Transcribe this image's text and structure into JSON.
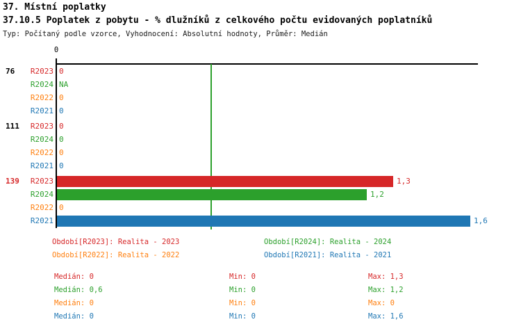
{
  "header": {
    "title1": "37. Místní poplatky",
    "title2": "37.10.5 Poplatek z pobytu - % dlužníků z celkového počtu evidovaných poplatníků",
    "meta": "Typ: Počítaný podle vzorce, Vyhodnocení: Absolutní hodnoty, Průměr: Medián"
  },
  "colors": {
    "r2023": "#d62728",
    "r2024": "#2ca02c",
    "r2022": "#ff7f0e",
    "r2021": "#1f77b4",
    "axis": "#000000",
    "highlight_group": "#d62728"
  },
  "chart_data": {
    "type": "bar",
    "orientation": "horizontal",
    "title": "37.10.5 Poplatek z pobytu - % dlužníků z celkového počtu evidovaných poplatníků",
    "xlabel": "",
    "ylabel": "",
    "xlim": [
      0,
      1.63
    ],
    "axis_tick_label": "0",
    "grid": false,
    "median_line": {
      "value": 0.6,
      "color": "#2ca02c"
    },
    "series_order": [
      "R2023",
      "R2024",
      "R2022",
      "R2021"
    ],
    "series_colors": {
      "R2023": "#d62728",
      "R2024": "#2ca02c",
      "R2022": "#ff7f0e",
      "R2021": "#1f77b4"
    },
    "groups": [
      {
        "id": "76",
        "id_color": "#000000",
        "rows": [
          {
            "series": "R2023",
            "value": 0,
            "display": "0"
          },
          {
            "series": "R2024",
            "value": null,
            "display": "NA"
          },
          {
            "series": "R2022",
            "value": 0,
            "display": "0"
          },
          {
            "series": "R2021",
            "value": 0,
            "display": "0"
          }
        ]
      },
      {
        "id": "111",
        "id_color": "#000000",
        "rows": [
          {
            "series": "R2023",
            "value": 0,
            "display": "0"
          },
          {
            "series": "R2024",
            "value": 0,
            "display": "0"
          },
          {
            "series": "R2022",
            "value": 0,
            "display": "0"
          },
          {
            "series": "R2021",
            "value": 0,
            "display": "0"
          }
        ]
      },
      {
        "id": "139",
        "id_color": "#d62728",
        "rows": [
          {
            "series": "R2023",
            "value": 1.3,
            "display": "1,3"
          },
          {
            "series": "R2024",
            "value": 1.2,
            "display": "1,2"
          },
          {
            "series": "R2022",
            "value": 0,
            "display": "0"
          },
          {
            "series": "R2021",
            "value": 1.6,
            "display": "1,6"
          }
        ]
      }
    ]
  },
  "legend": {
    "items": [
      {
        "text": "Období[R2023]: Realita - 2023",
        "color": "#d62728"
      },
      {
        "text": "Období[R2024]: Realita - 2024",
        "color": "#2ca02c"
      },
      {
        "text": "Období[R2022]: Realita - 2022",
        "color": "#ff7f0e"
      },
      {
        "text": "Období[R2021]: Realita - 2021",
        "color": "#1f77b4"
      }
    ]
  },
  "stats": {
    "rows": [
      {
        "color": "#d62728",
        "median": "Medián: 0",
        "min": "Min: 0",
        "max": "Max: 1,3"
      },
      {
        "color": "#2ca02c",
        "median": "Medián: 0,6",
        "min": "Min: 0",
        "max": "Max: 1,2"
      },
      {
        "color": "#ff7f0e",
        "median": "Medián: 0",
        "min": "Min: 0",
        "max": "Max: 0"
      },
      {
        "color": "#1f77b4",
        "median": "Medián: 0",
        "min": "Min: 0",
        "max": "Max: 1,6"
      }
    ]
  }
}
